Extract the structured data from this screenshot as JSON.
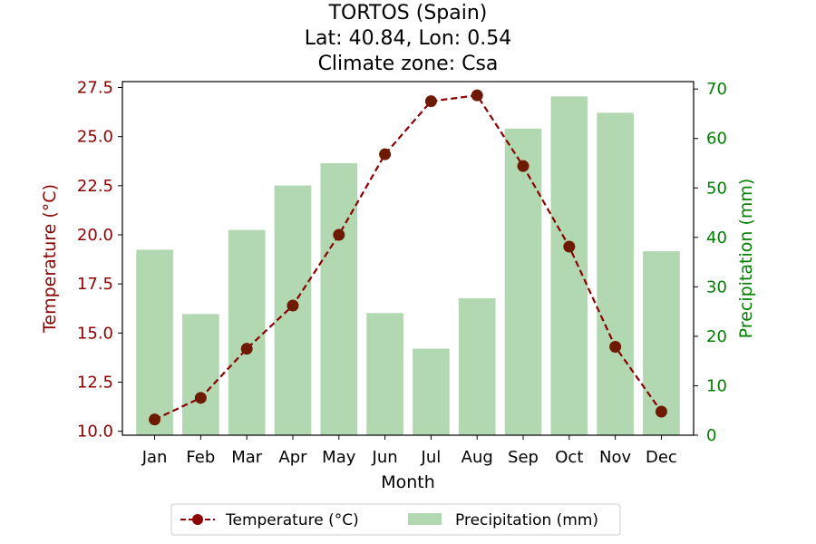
{
  "chart_data": {
    "type": "bar",
    "title": [
      "TORTOS (Spain)",
      "Lat: 40.84, Lon: 0.54",
      "Climate zone: Csa"
    ],
    "xlabel": "Month",
    "ylabel_left": "Temperature (°C)",
    "ylabel_right": "Precipitation (mm)",
    "categories": [
      "Jan",
      "Feb",
      "Mar",
      "Apr",
      "May",
      "Jun",
      "Jul",
      "Aug",
      "Sep",
      "Oct",
      "Nov",
      "Dec"
    ],
    "ylim_left": [
      9.8,
      27.8
    ],
    "ylim_right": [
      0,
      71.5
    ],
    "yticks_left": [
      "10.0",
      "12.5",
      "15.0",
      "17.5",
      "20.0",
      "22.5",
      "25.0",
      "27.5"
    ],
    "yticks_right": [
      "0",
      "10",
      "20",
      "30",
      "40",
      "50",
      "60",
      "70"
    ],
    "series": [
      {
        "name": "Temperature (°C)",
        "kind": "line",
        "axis": "left",
        "color": "#8b0000",
        "values": [
          10.6,
          11.7,
          14.2,
          16.4,
          20.0,
          24.1,
          26.8,
          27.1,
          23.5,
          19.4,
          14.3,
          11.0
        ]
      },
      {
        "name": "Precipitation (mm)",
        "kind": "bar",
        "axis": "right",
        "color": "#b2d8b2",
        "values": [
          37.5,
          24.5,
          41.5,
          50.5,
          55.0,
          24.7,
          17.5,
          27.7,
          62.0,
          68.5,
          65.2,
          37.2
        ]
      }
    ],
    "legend_position": "bottom-center",
    "left_axis_color": "#8b0000",
    "right_axis_color": "#008000"
  }
}
